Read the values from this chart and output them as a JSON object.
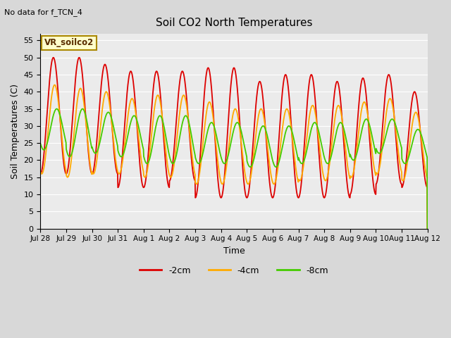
{
  "title": "Soil CO2 North Temperatures",
  "no_data_text": "No data for f_TCN_4",
  "legend_box_label": "VR_soilco2",
  "xlabel": "Time",
  "ylabel": "Soil Temperatures (C)",
  "ylim": [
    0,
    57
  ],
  "yticks": [
    0,
    5,
    10,
    15,
    20,
    25,
    30,
    35,
    40,
    45,
    50,
    55
  ],
  "xtick_labels": [
    "Jul 28",
    "Jul 29",
    "Jul 30",
    "Jul 31",
    "Aug 1",
    "Aug 2",
    "Aug 3",
    "Aug 4",
    "Aug 5",
    "Aug 6",
    "Aug 7",
    "Aug 8",
    "Aug 9",
    "Aug 10",
    "Aug 11",
    "Aug 12"
  ],
  "line_colors": [
    "#dd0000",
    "#ffaa00",
    "#44cc00"
  ],
  "line_labels": [
    "-2cm",
    "-4cm",
    "-8cm"
  ],
  "line_width": 1.3,
  "fig_bg_color": "#d8d8d8",
  "plot_bg_color": "#ebebeb",
  "grid_color": "#ffffff",
  "n_days": 15,
  "points_per_day": 96,
  "means_2cm": [
    33,
    33,
    32,
    29,
    29,
    30,
    28,
    28,
    26,
    27,
    27,
    26,
    27,
    29,
    26
  ],
  "amplitudes_2cm": [
    17,
    17,
    16,
    17,
    17,
    16,
    19,
    19,
    17,
    18,
    18,
    17,
    17,
    16,
    14
  ],
  "means_4cm": [
    29,
    28,
    28,
    27,
    27,
    27,
    25,
    24,
    24,
    24,
    25,
    25,
    26,
    27,
    24
  ],
  "amplitudes_4cm": [
    13,
    13,
    12,
    11,
    12,
    12,
    12,
    11,
    11,
    11,
    11,
    11,
    11,
    11,
    10
  ],
  "means_8cm": [
    29,
    28,
    28,
    27,
    26,
    26,
    25,
    25,
    24,
    24,
    25,
    25,
    26,
    27,
    24
  ],
  "amplitudes_8cm": [
    6,
    7,
    6,
    6,
    7,
    7,
    6,
    6,
    6,
    6,
    6,
    6,
    6,
    5,
    5
  ],
  "phase_2cm": 0.25,
  "phase_4cm": 0.3,
  "phase_8cm": 0.38
}
